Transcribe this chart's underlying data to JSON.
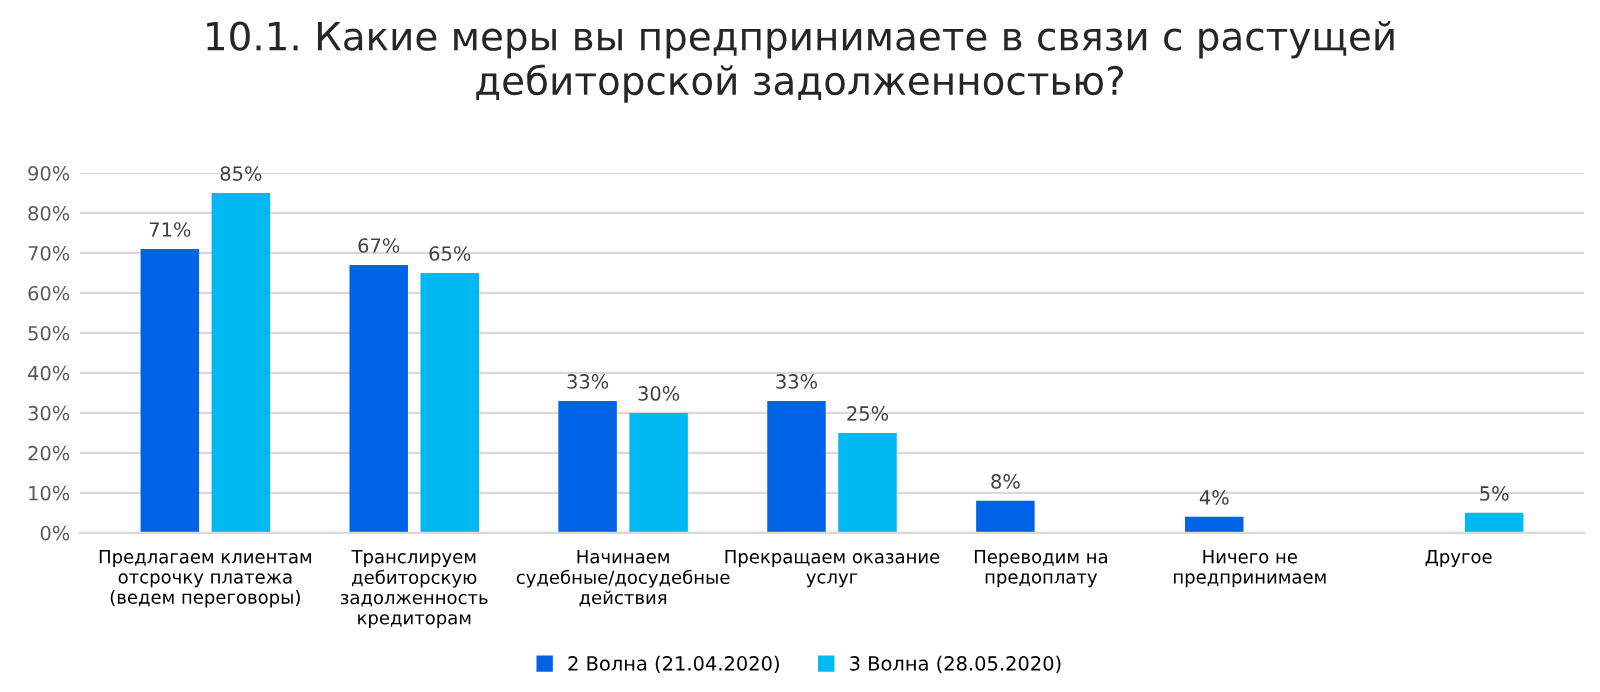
{
  "chart_data": {
    "type": "bar",
    "title": "10.1. Какие меры вы предпринимаете в связи с растущей\nдебиторской задолженностью?",
    "categories": [
      "Предлагаем клиентам\nотсрочку платежа\n(ведем переговоры)",
      "Транслируем\nдебиторскую\nзадолженность\nкредиторам",
      "Начинаем\nсудебные/досудебные\nдействия",
      "Прекращаем оказание\nуслуг",
      "Переводим на\nпредоплату",
      "Ничего не\nпредпринимаем",
      "Другое"
    ],
    "series": [
      {
        "name": "2 Волна (21.04.2020)",
        "color": "#0062e6",
        "values": [
          71,
          67,
          33,
          33,
          8,
          4,
          null
        ],
        "value_labels": [
          "71%",
          "67%",
          "33%",
          "33%",
          "8%",
          "4%",
          null
        ]
      },
      {
        "name": "3 Волна (28.05.2020)",
        "color": "#00b8f2",
        "values": [
          85,
          65,
          30,
          25,
          null,
          null,
          5
        ],
        "value_labels": [
          "85%",
          "65%",
          "30%",
          "25%",
          null,
          null,
          "5%"
        ]
      }
    ],
    "ylim": [
      0,
      90
    ],
    "yticks": [
      {
        "value": 0,
        "label": "0%"
      },
      {
        "value": 10,
        "label": "10%"
      },
      {
        "value": 20,
        "label": "20%"
      },
      {
        "value": 30,
        "label": "30%"
      },
      {
        "value": 40,
        "label": "40%"
      },
      {
        "value": 50,
        "label": "50%"
      },
      {
        "value": 60,
        "label": "60%"
      },
      {
        "value": 70,
        "label": "70%"
      },
      {
        "value": 80,
        "label": "80%"
      },
      {
        "value": 90,
        "label": "90%"
      }
    ],
    "grid": "y",
    "legend": "bottom"
  }
}
